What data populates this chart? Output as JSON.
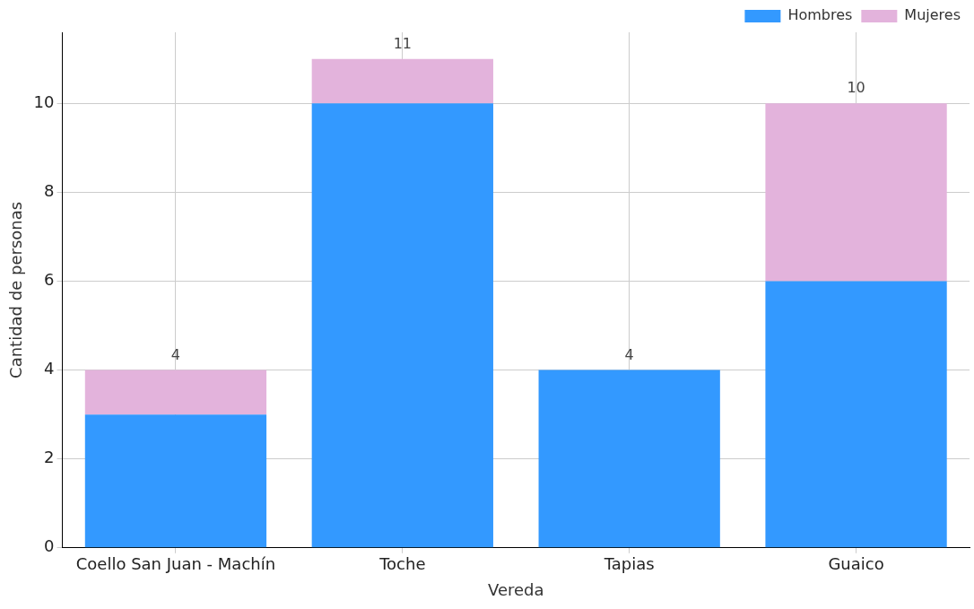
{
  "chart_data": {
    "type": "bar",
    "stacked": true,
    "xlabel": "Vereda",
    "ylabel": "Cantidad de personas",
    "categories": [
      "Coello San Juan - Machín",
      "Toche",
      "Tapias",
      "Guaico"
    ],
    "series": [
      {
        "name": "Hombres",
        "color": "#3399ff",
        "values": [
          3,
          10,
          4,
          6
        ]
      },
      {
        "name": "Mujeres",
        "color": "#e3b3dc",
        "values": [
          1,
          1,
          0,
          4
        ]
      }
    ],
    "totals": [
      "4",
      "11",
      "4",
      "10"
    ],
    "ylim": [
      0,
      11.6
    ],
    "yticks": [
      0,
      2,
      4,
      6,
      8,
      10
    ],
    "grid": true,
    "legend": "top right"
  }
}
